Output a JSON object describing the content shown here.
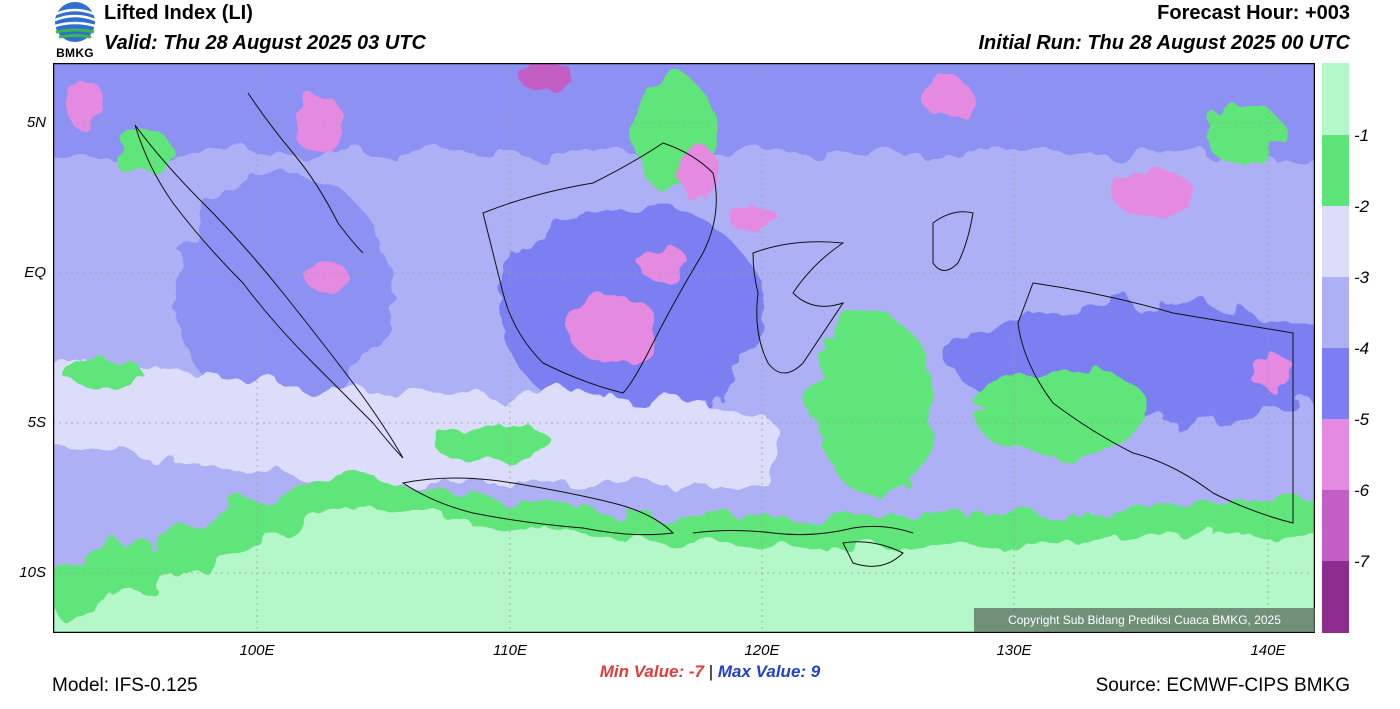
{
  "header": {
    "logo_text": "BMKG",
    "title": "Lifted Index (LI)",
    "valid": "Valid: Thu 28 August 2025 03 UTC",
    "forecast_hour": "Forecast Hour: +003",
    "initial_run": "Initial Run: Thu 28 August 2025 00 UTC"
  },
  "axes": {
    "lat_labels": [
      "5N",
      "EQ",
      "5S",
      "10S"
    ],
    "lon_labels": [
      "100E",
      "110E",
      "120E",
      "130E",
      "140E"
    ]
  },
  "colorbar": {
    "labels": [
      "-1",
      "-2",
      "-3",
      "-4",
      "-5",
      "-6",
      "-7"
    ],
    "colors": [
      "#b4f7c8",
      "#5ee57a",
      "#dcdcfb",
      "#aeb0f5",
      "#7b7ff2",
      "#e48ae0",
      "#c35fc4",
      "#8c2c8e"
    ]
  },
  "stats": {
    "min_label": "Min Value:",
    "min_value": "-7",
    "separator": "|",
    "max_label": "Max Value:",
    "max_value": "9"
  },
  "footer": {
    "model": "Model: IFS-0.125",
    "source": "Source: ECMWF-CIPS BMKG",
    "copyright": "Copyright Sub Bidang Prediksi Cuaca BMKG, 2025"
  }
}
